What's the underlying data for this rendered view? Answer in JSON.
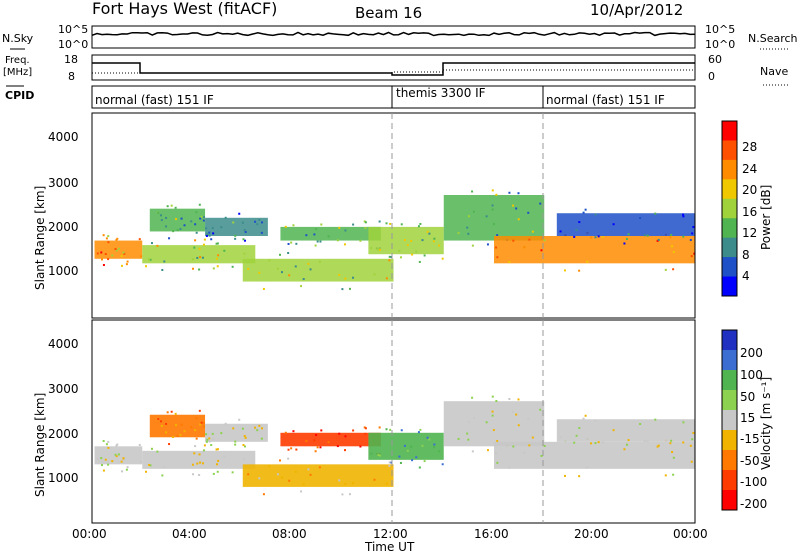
{
  "header": {
    "title": "Fort Hays West (fitACF)",
    "beam": "Beam 16",
    "date": "10/Apr/2012"
  },
  "noise_panel": {
    "left_label": "N.Sky",
    "right_label": "N.Search",
    "left_ticks": [
      "10^5",
      "10^0"
    ],
    "right_ticks": [
      "10^5",
      "10^0"
    ]
  },
  "freq_panel": {
    "left_label_1": "Freq.",
    "left_label_2": "[MHz]",
    "left_ticks": [
      "18",
      "8"
    ],
    "right_label": "Nave",
    "right_ticks": [
      "60",
      "0"
    ]
  },
  "cpid_panel": {
    "label": "CPID",
    "segments": [
      {
        "label": "normal (fast) 151 IF",
        "start_hour": 0,
        "end_hour": 12
      },
      {
        "label": "themis 3300 IF",
        "start_hour": 12,
        "end_hour": 18
      },
      {
        "label": "normal (fast) 151 IF",
        "start_hour": 18,
        "end_hour": 24
      }
    ]
  },
  "x_axis": {
    "label": "Time UT",
    "ticks": [
      "00:00",
      "04:00",
      "08:00",
      "12:00",
      "16:00",
      "20:00",
      "00:00"
    ]
  },
  "power_panel": {
    "ylabel": "Slant Range [km]",
    "yticks": [
      "1000",
      "2000",
      "3000",
      "4000"
    ],
    "colorbar_label": "Power [dB]",
    "colorbar_ticks": [
      "4",
      "8",
      "12",
      "16",
      "20",
      "24",
      "28"
    ],
    "colors": [
      "#0000ff",
      "#1e50c8",
      "#3c8c8c",
      "#50b450",
      "#a0d23c",
      "#f0c800",
      "#ff8c00",
      "#ff5000",
      "#ff0000"
    ]
  },
  "velocity_panel": {
    "ylabel": "Slant Range [km]",
    "yticks": [
      "1000",
      "2000",
      "3000",
      "4000"
    ],
    "colorbar_label": "Velocity [m s⁻¹]",
    "colorbar_ticks": [
      "200",
      "100",
      "50",
      "15",
      "-15",
      "-50",
      "-100",
      "-200"
    ],
    "colors": [
      "#2030c0",
      "#3c6ed2",
      "#50b450",
      "#8cd250",
      "#c8c8c8",
      "#f0b400",
      "#ff7800",
      "#ff3c00",
      "#ff0000"
    ]
  },
  "chart_data": {
    "type": "heatmap",
    "x_range_hours": [
      0,
      24
    ],
    "y_range_km": [
      0,
      4500
    ],
    "echo_regions": [
      {
        "t0": 0.1,
        "t1": 2.0,
        "r0": 1300,
        "r1": 1700,
        "power_level": 6,
        "velocity_level": 4
      },
      {
        "t0": 2.0,
        "t1": 6.5,
        "r0": 1200,
        "r1": 1600,
        "power_level": 4,
        "velocity_level": 4
      },
      {
        "t0": 2.3,
        "t1": 4.5,
        "r0": 1900,
        "r1": 2400,
        "power_level": 3,
        "velocity_level": 6
      },
      {
        "t0": 4.5,
        "t1": 7.0,
        "r0": 1800,
        "r1": 2200,
        "power_level": 2,
        "velocity_level": 4
      },
      {
        "t0": 6.0,
        "t1": 12.0,
        "r0": 800,
        "r1": 1300,
        "power_level": 4,
        "velocity_level": 5
      },
      {
        "t0": 7.5,
        "t1": 11.5,
        "r0": 1700,
        "r1": 2000,
        "power_level": 3,
        "velocity_level": 7
      },
      {
        "t0": 11.0,
        "t1": 14.0,
        "r0": 1400,
        "r1": 2000,
        "power_level": 4,
        "velocity_level": 2
      },
      {
        "t0": 14.0,
        "t1": 18.0,
        "r0": 1700,
        "r1": 2700,
        "power_level": 3,
        "velocity_level": 4
      },
      {
        "t0": 16.0,
        "t1": 24.0,
        "r0": 1200,
        "r1": 1800,
        "power_level": 6,
        "velocity_level": 4
      },
      {
        "t0": 18.5,
        "t1": 24.0,
        "r0": 1800,
        "r1": 2300,
        "power_level": 1,
        "velocity_level": 4
      }
    ]
  }
}
